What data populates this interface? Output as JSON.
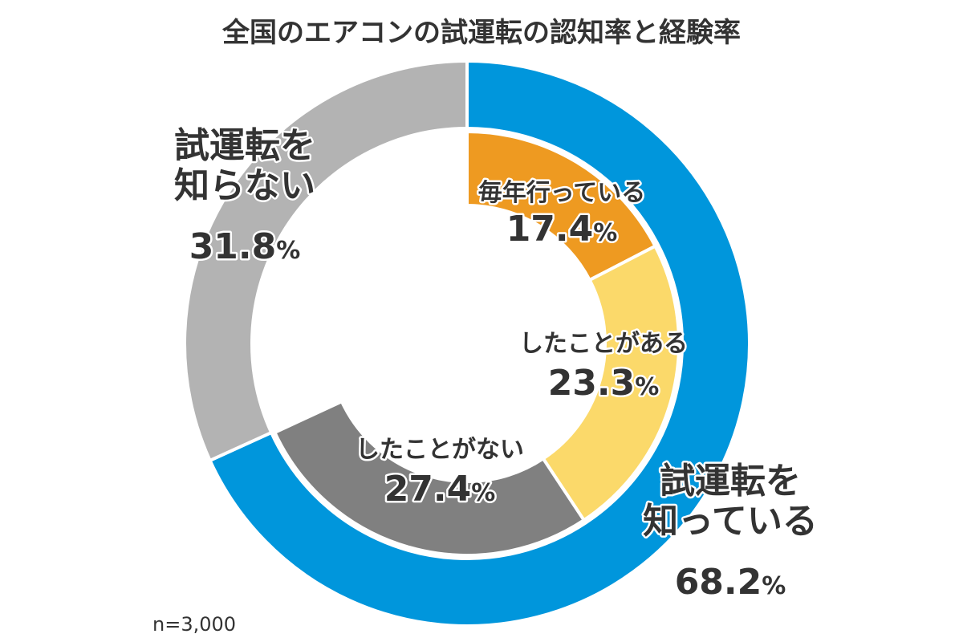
{
  "chart_data": {
    "type": "pie",
    "title": "全国のエアコンの試運転の認知率と経験率",
    "note": "n=3,000",
    "unit": "%",
    "outer_ring": [
      {
        "label_lines": [
          "試運転を",
          "知っている"
        ],
        "value": 68.2,
        "value_text": "68.2",
        "color": "#0096DC"
      },
      {
        "label_lines": [
          "試運転を",
          "知らない"
        ],
        "value": 31.8,
        "value_text": "31.8",
        "color": "#B3B3B3"
      }
    ],
    "inner_ring": [
      {
        "label_lines": [
          "毎年行っている"
        ],
        "value": 17.4,
        "value_text": "17.4",
        "color": "#EE9A21"
      },
      {
        "label_lines": [
          "したことがある"
        ],
        "value": 23.3,
        "value_text": "23.3",
        "color": "#FBD96A"
      },
      {
        "label_lines": [
          "したことがない"
        ],
        "value": 27.4,
        "value_text": "27.4",
        "color": "#808080"
      }
    ]
  }
}
